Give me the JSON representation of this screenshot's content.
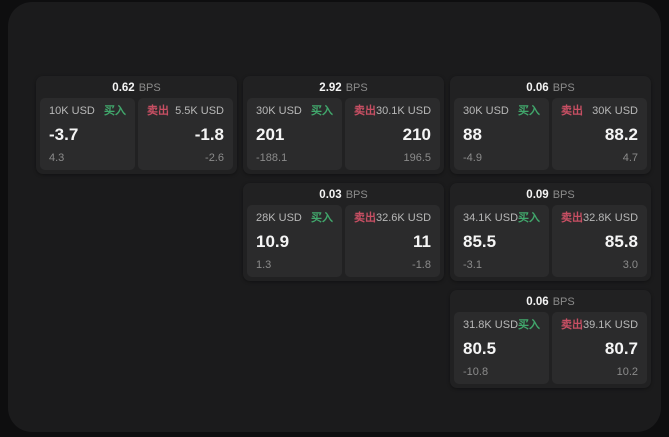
{
  "colors": {
    "page_bg": "#0e0e0f",
    "panel_bg": "#1b1b1c",
    "card_bg": "#212122",
    "tile_bg": "#2b2b2c",
    "buy_green": "#41a76c",
    "sell_red": "#c74f63",
    "text_primary": "#f5f5f5",
    "text_secondary": "#b8b8b8",
    "text_muted": "#8b8b8b"
  },
  "labels": {
    "bps_unit": "BPS",
    "buy": "买入",
    "sell": "卖出"
  },
  "cards": [
    {
      "bps": "0.62",
      "row": 1,
      "col": 1,
      "buy": {
        "notional": "10K USD",
        "value": "-3.7",
        "delta": "4.3"
      },
      "sell": {
        "notional": "5.5K USD",
        "value": "-1.8",
        "delta": "-2.6"
      }
    },
    {
      "bps": "2.92",
      "row": 1,
      "col": 2,
      "buy": {
        "notional": "30K USD",
        "value": "201",
        "delta": "-188.1"
      },
      "sell": {
        "notional": "30.1K USD",
        "value": "210",
        "delta": "196.5"
      }
    },
    {
      "bps": "0.06",
      "row": 1,
      "col": 3,
      "buy": {
        "notional": "30K USD",
        "value": "88",
        "delta": "-4.9"
      },
      "sell": {
        "notional": "30K USD",
        "value": "88.2",
        "delta": "4.7"
      }
    },
    {
      "bps": "0.03",
      "row": 2,
      "col": 2,
      "buy": {
        "notional": "28K USD",
        "value": "10.9",
        "delta": "1.3"
      },
      "sell": {
        "notional": "32.6K USD",
        "value": "11",
        "delta": "-1.8"
      }
    },
    {
      "bps": "0.09",
      "row": 2,
      "col": 3,
      "buy": {
        "notional": "34.1K USD",
        "value": "85.5",
        "delta": "-3.1"
      },
      "sell": {
        "notional": "32.8K USD",
        "value": "85.8",
        "delta": "3.0"
      }
    },
    {
      "bps": "0.06",
      "row": 3,
      "col": 3,
      "buy": {
        "notional": "31.8K USD",
        "value": "80.5",
        "delta": "-10.8"
      },
      "sell": {
        "notional": "39.1K USD",
        "value": "80.7",
        "delta": "10.2"
      }
    }
  ]
}
